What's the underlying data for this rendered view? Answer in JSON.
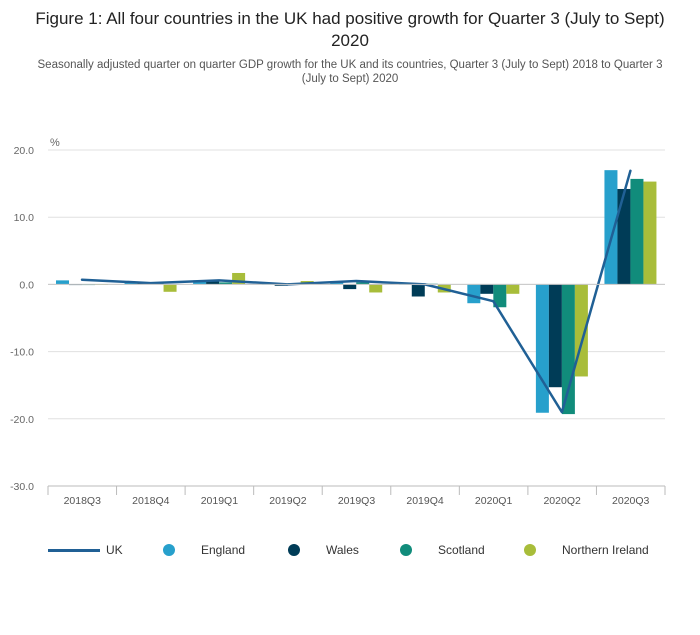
{
  "chart_data": {
    "type": "bar",
    "title": "Figure 1: All four countries in the UK had positive growth for Quarter 3 (July to Sept) 2020",
    "subtitle": "Seasonally adjusted quarter on quarter GDP growth for the UK and its countries, Quarter 3 (July to Sept) 2018 to Quarter 3 (July to Sept) 2020",
    "ylabel": "%",
    "xlabel": "",
    "ylim": [
      -30,
      20
    ],
    "yticks": [
      20,
      10,
      0,
      -10,
      -20,
      -30
    ],
    "ytick_labels": [
      "20.0",
      "10.0",
      "0.0",
      "-10.0",
      "-20.0",
      "-30.0"
    ],
    "grid": true,
    "legend_position": "bottom",
    "categories": [
      "2018Q3",
      "2018Q4",
      "2019Q1",
      "2019Q2",
      "2019Q3",
      "2019Q4",
      "2020Q1",
      "2020Q2",
      "2020Q3"
    ],
    "line_series": {
      "name": "UK",
      "color": "#206095",
      "values": [
        0.7,
        0.2,
        0.6,
        0.0,
        0.5,
        0.0,
        -2.5,
        -19.0,
        16.9
      ]
    },
    "series": [
      {
        "name": "England",
        "color": "#27a0cc",
        "values": [
          0.6,
          0.4,
          0.6,
          0.0,
          0.4,
          0.0,
          -2.8,
          -19.1,
          17.0
        ]
      },
      {
        "name": "Wales",
        "color": "#003c57",
        "values": [
          -0.1,
          0.3,
          0.5,
          -0.2,
          -0.7,
          -1.8,
          -1.4,
          -15.3,
          14.2
        ]
      },
      {
        "name": "Scotland",
        "color": "#118c7b",
        "values": [
          -0.1,
          0.2,
          0.3,
          0.2,
          0.3,
          0.1,
          -3.4,
          -19.3,
          15.7
        ]
      },
      {
        "name": "Northern Ireland",
        "color": "#a8bd3a",
        "values": [
          0.0,
          -1.1,
          1.7,
          0.5,
          -1.2,
          -1.2,
          -1.4,
          -13.7,
          15.3
        ]
      }
    ]
  }
}
